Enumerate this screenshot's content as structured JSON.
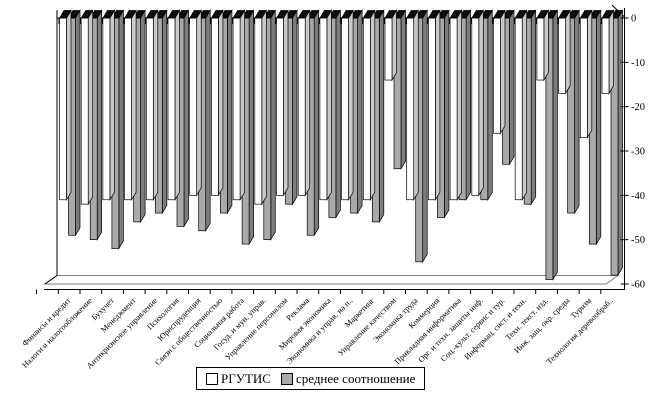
{
  "chart_data": {
    "type": "bar",
    "style": "3d-columns",
    "title": "",
    "xlabel": "",
    "ylabel": "",
    "ylim": [
      -60,
      0
    ],
    "y_ticks": [
      0,
      -10,
      -20,
      -30,
      -40,
      -50,
      -60
    ],
    "grid": false,
    "legend_position": "bottom",
    "categories": [
      "Финансы и кредит",
      "Налоги и налогообложение",
      "Бухучет",
      "Менеджмент",
      "Антикризисное управление",
      "Психология",
      "Юриспруденция",
      "Связи с общественностью",
      "Социальная работа",
      "Госуд. и мун. управ.",
      "Управление персоналом",
      "Реклама",
      "Мировая экономика",
      "Экономика и управ. на п..",
      "Маркетинг",
      "Управление качеством",
      "Экономика труда",
      "Коммерция",
      "Прикладная информатика",
      "Орг. и техн. защиты инф.",
      "Соц.-культ. сервис и тур.",
      "Информац. сист. и техн.",
      "Техн. текст. изд.",
      "Инж. защ. окр. среды",
      "Туризм",
      "Технология деревообраб.."
    ],
    "series": [
      {
        "name": "РГУТИС",
        "front_color": "#ffffff",
        "side_color": "#c9c9c9",
        "values": [
          -41,
          -42,
          -41,
          -41,
          -41,
          -41,
          -40,
          -40,
          -41,
          -42,
          -40,
          -40,
          -41,
          -41,
          -41,
          -14,
          -41,
          -41,
          -41,
          -40,
          -26,
          -41,
          -14,
          -17,
          -27,
          -17
        ]
      },
      {
        "name": "среднее соотношение",
        "front_color": "#a9a9a9",
        "side_color": "#7d7d7d",
        "values": [
          -49,
          -50,
          -52,
          -46,
          -44,
          -47,
          -48,
          -44,
          -51,
          -50,
          -42,
          -49,
          -45,
          -44,
          -46,
          -34,
          -55,
          -45,
          -41,
          -41,
          -33,
          -42,
          -59,
          -44,
          -51,
          -58
        ]
      }
    ],
    "cap_color": "#0d0d0d",
    "axis_color": "#000000",
    "floor_color": "#808080"
  }
}
